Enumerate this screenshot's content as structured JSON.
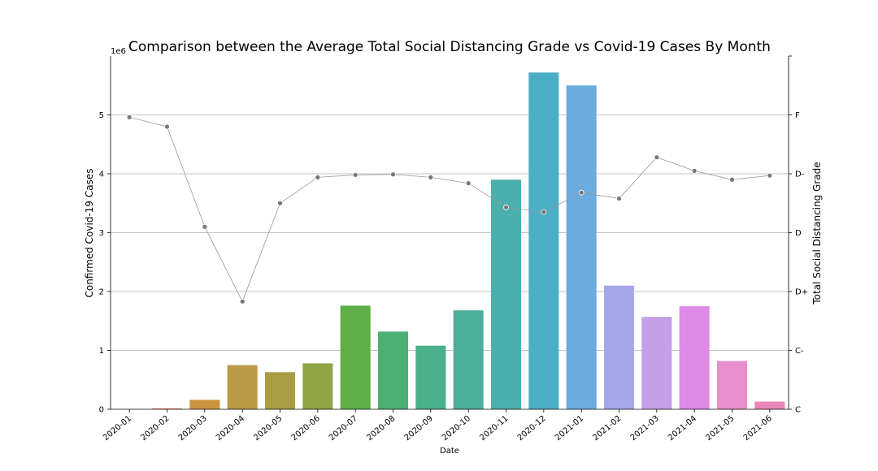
{
  "chart_data": {
    "type": "bar",
    "title": "Comparison between the Average Total Social Distancing Grade vs Covid-19 Cases By Month",
    "xlabel": "Date",
    "ylabel": "Confirmed Covid-19 Cases",
    "y2label": "Total Social Distancing Grade",
    "y_multiplier_label": "1e6",
    "categories": [
      "2020-01",
      "2020-02",
      "2020-03",
      "2020-04",
      "2020-05",
      "2020-06",
      "2020-07",
      "2020-08",
      "2020-09",
      "2020-10",
      "2020-11",
      "2020-12",
      "2021-01",
      "2021-02",
      "2021-03",
      "2021-04",
      "2021-05",
      "2021-06"
    ],
    "ylim": [
      0,
      6000000
    ],
    "yticks": [
      0,
      1,
      2,
      3,
      4,
      5
    ],
    "y2lim": [
      0,
      6
    ],
    "y2ticks": [
      "C",
      "C-",
      "D+",
      "D",
      "D-",
      "F"
    ],
    "grid": true,
    "series": [
      {
        "kind": "bar",
        "values": [
          5000,
          15000,
          160000,
          750000,
          630000,
          780000,
          1760000,
          1320000,
          1080000,
          1680000,
          3900000,
          5720000,
          5500000,
          2100000,
          1570000,
          1750000,
          820000,
          130000
        ],
        "colors": [
          "#e8828e",
          "#ea8561",
          "#c99541",
          "#bb9a45",
          "#a89d43",
          "#90a545",
          "#5eaf48",
          "#4ab074",
          "#4ab08c",
          "#4ab09c",
          "#4ab0ae",
          "#4caec5",
          "#6aacdd",
          "#a5a8e8",
          "#c4a0e8",
          "#df8ae5",
          "#e88fcb",
          "#ea86b8"
        ]
      },
      {
        "kind": "line",
        "axis": "right",
        "values": [
          4.96,
          4.8,
          3.1,
          1.83,
          3.5,
          3.94,
          3.98,
          3.99,
          3.94,
          3.84,
          3.43,
          3.35,
          3.68,
          3.58,
          4.28,
          4.05,
          3.9,
          3.97
        ],
        "color": "#888888"
      }
    ]
  }
}
